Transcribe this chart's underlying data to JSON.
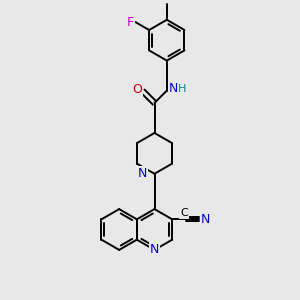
{
  "background_color": "#e8e8e8",
  "atom_colors": {
    "N": "#0000cc",
    "O": "#cc0000",
    "F": "#cc00cc",
    "H": "#008888"
  },
  "bond_color": "#000000",
  "bond_width": 1.4,
  "figsize": [
    3.0,
    3.0
  ],
  "dpi": 100,
  "xlim": [
    0,
    10
  ],
  "ylim": [
    0,
    10
  ]
}
